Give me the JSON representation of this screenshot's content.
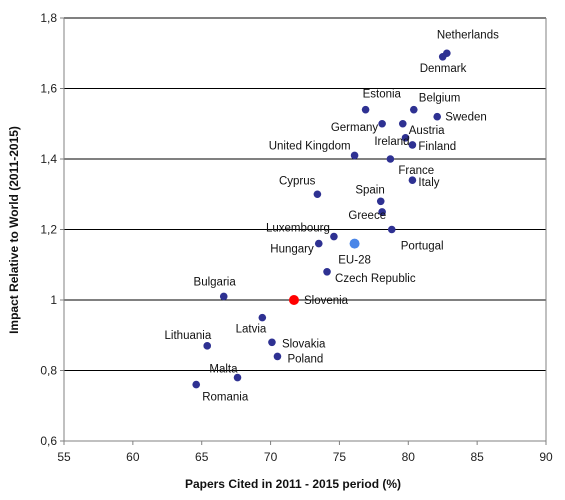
{
  "chart_data": {
    "type": "scatter",
    "title": "",
    "xlabel": "Papers Cited in 2011 - 2015 period (%)",
    "ylabel": "Impact Relative to World (2011-2015)",
    "xlim": [
      55,
      90
    ],
    "ylim": [
      0.6,
      1.8
    ],
    "xticks": [
      55,
      60,
      65,
      70,
      75,
      80,
      85,
      90
    ],
    "yticks": [
      0.6,
      0.8,
      1.0,
      1.2,
      1.4,
      1.6,
      1.8
    ],
    "xtick_labels": [
      "55",
      "60",
      "65",
      "70",
      "75",
      "80",
      "85",
      "90"
    ],
    "ytick_labels": [
      "0,6",
      "0,8",
      "1",
      "1,2",
      "1,4",
      "1,6",
      "1,8"
    ],
    "grid": "horizontal",
    "colors": {
      "default": "#2e3192",
      "eu": "#4a86e8",
      "eu_label": "#6fa8dc",
      "highlight": "#ff0000",
      "gridline": "#000000"
    },
    "points": [
      {
        "name": "Netherlands",
        "x": 82.8,
        "y": 1.7
      },
      {
        "name": "Denmark",
        "x": 82.5,
        "y": 1.69
      },
      {
        "name": "Estonia",
        "x": 76.9,
        "y": 1.54
      },
      {
        "name": "Belgium",
        "x": 80.4,
        "y": 1.54
      },
      {
        "name": "Sweden",
        "x": 82.1,
        "y": 1.52
      },
      {
        "name": "Germany",
        "x": 78.1,
        "y": 1.5
      },
      {
        "name": "Austria",
        "x": 79.6,
        "y": 1.5
      },
      {
        "name": "Ireland",
        "x": 79.8,
        "y": 1.46
      },
      {
        "name": "Finland",
        "x": 80.3,
        "y": 1.44
      },
      {
        "name": "United Kingdom",
        "x": 76.1,
        "y": 1.41
      },
      {
        "name": "France",
        "x": 78.7,
        "y": 1.4
      },
      {
        "name": "Italy",
        "x": 80.3,
        "y": 1.34
      },
      {
        "name": "Cyprus",
        "x": 73.4,
        "y": 1.3
      },
      {
        "name": "Spain",
        "x": 78.0,
        "y": 1.28
      },
      {
        "name": "Greece",
        "x": 78.1,
        "y": 1.25
      },
      {
        "name": "Portugal",
        "x": 78.8,
        "y": 1.2
      },
      {
        "name": "Luxembourg",
        "x": 74.6,
        "y": 1.18
      },
      {
        "name": "Hungary",
        "x": 73.5,
        "y": 1.16
      },
      {
        "name": "EU-28",
        "x": 76.1,
        "y": 1.16,
        "kind": "eu"
      },
      {
        "name": "Czech Republic",
        "x": 74.1,
        "y": 1.08
      },
      {
        "name": "Bulgaria",
        "x": 66.6,
        "y": 1.01
      },
      {
        "name": "Slovenia",
        "x": 71.7,
        "y": 1.0,
        "kind": "highlight"
      },
      {
        "name": "Latvia",
        "x": 69.4,
        "y": 0.95
      },
      {
        "name": "Lithuania",
        "x": 65.4,
        "y": 0.87
      },
      {
        "name": "Slovakia",
        "x": 70.1,
        "y": 0.88
      },
      {
        "name": "Poland",
        "x": 70.5,
        "y": 0.84
      },
      {
        "name": "Malta",
        "x": 67.6,
        "y": 0.78
      },
      {
        "name": "Romania",
        "x": 64.6,
        "y": 0.76
      }
    ]
  }
}
